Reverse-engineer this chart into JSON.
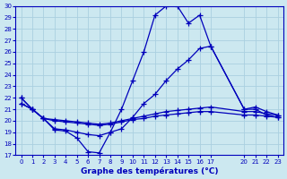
{
  "title": "Graphe des températures (°C)",
  "background_color": "#cce8f0",
  "grid_color": "#aad0e0",
  "line_color": "#0000bb",
  "xlim": [
    -0.5,
    23.5
  ],
  "ylim": [
    17,
    30
  ],
  "xticks": [
    0,
    1,
    2,
    3,
    4,
    5,
    6,
    7,
    8,
    9,
    10,
    11,
    12,
    13,
    14,
    15,
    16,
    17,
    20,
    21,
    22,
    23
  ],
  "yticks": [
    17,
    18,
    19,
    20,
    21,
    22,
    23,
    24,
    25,
    26,
    27,
    28,
    29,
    30
  ],
  "line1_x": [
    0,
    1,
    2,
    3,
    4,
    5,
    6,
    7,
    8,
    9,
    10,
    11,
    12,
    13,
    14,
    15,
    16,
    17,
    20,
    21,
    22,
    23
  ],
  "line1_y": [
    22,
    21,
    20.2,
    19.2,
    19.1,
    18.5,
    17.3,
    17.2,
    19.0,
    21.0,
    23.5,
    26.0,
    29.2,
    30.0,
    30.0,
    28.5,
    29.2,
    26.5,
    21.0,
    21.0,
    20.5,
    20.3
  ],
  "line2_x": [
    0,
    1,
    2,
    3,
    4,
    5,
    6,
    7,
    8,
    9,
    10,
    11,
    12,
    13,
    14,
    15,
    16,
    17,
    20,
    21,
    22,
    23
  ],
  "line2_y": [
    22,
    21,
    20.2,
    19.3,
    19.2,
    19.0,
    18.8,
    18.7,
    19.0,
    19.3,
    20.3,
    21.5,
    22.3,
    23.5,
    24.5,
    25.3,
    26.3,
    26.5,
    21.0,
    21.2,
    20.8,
    20.5
  ],
  "line3_x": [
    0,
    1,
    2,
    3,
    4,
    5,
    6,
    7,
    8,
    9,
    10,
    11,
    12,
    13,
    14,
    15,
    16,
    17,
    20,
    21,
    22,
    23
  ],
  "line3_y": [
    21.5,
    21.0,
    20.2,
    20.1,
    20.0,
    19.9,
    19.8,
    19.7,
    19.8,
    20.0,
    20.2,
    20.4,
    20.6,
    20.8,
    20.9,
    21.0,
    21.1,
    21.2,
    20.8,
    20.8,
    20.6,
    20.5
  ],
  "line4_x": [
    0,
    1,
    2,
    3,
    4,
    5,
    6,
    7,
    8,
    9,
    10,
    11,
    12,
    13,
    14,
    15,
    16,
    17,
    20,
    21,
    22,
    23
  ],
  "line4_y": [
    21.5,
    21.0,
    20.2,
    20.0,
    19.9,
    19.8,
    19.7,
    19.6,
    19.7,
    19.9,
    20.1,
    20.2,
    20.4,
    20.5,
    20.6,
    20.7,
    20.8,
    20.8,
    20.5,
    20.5,
    20.4,
    20.3
  ]
}
